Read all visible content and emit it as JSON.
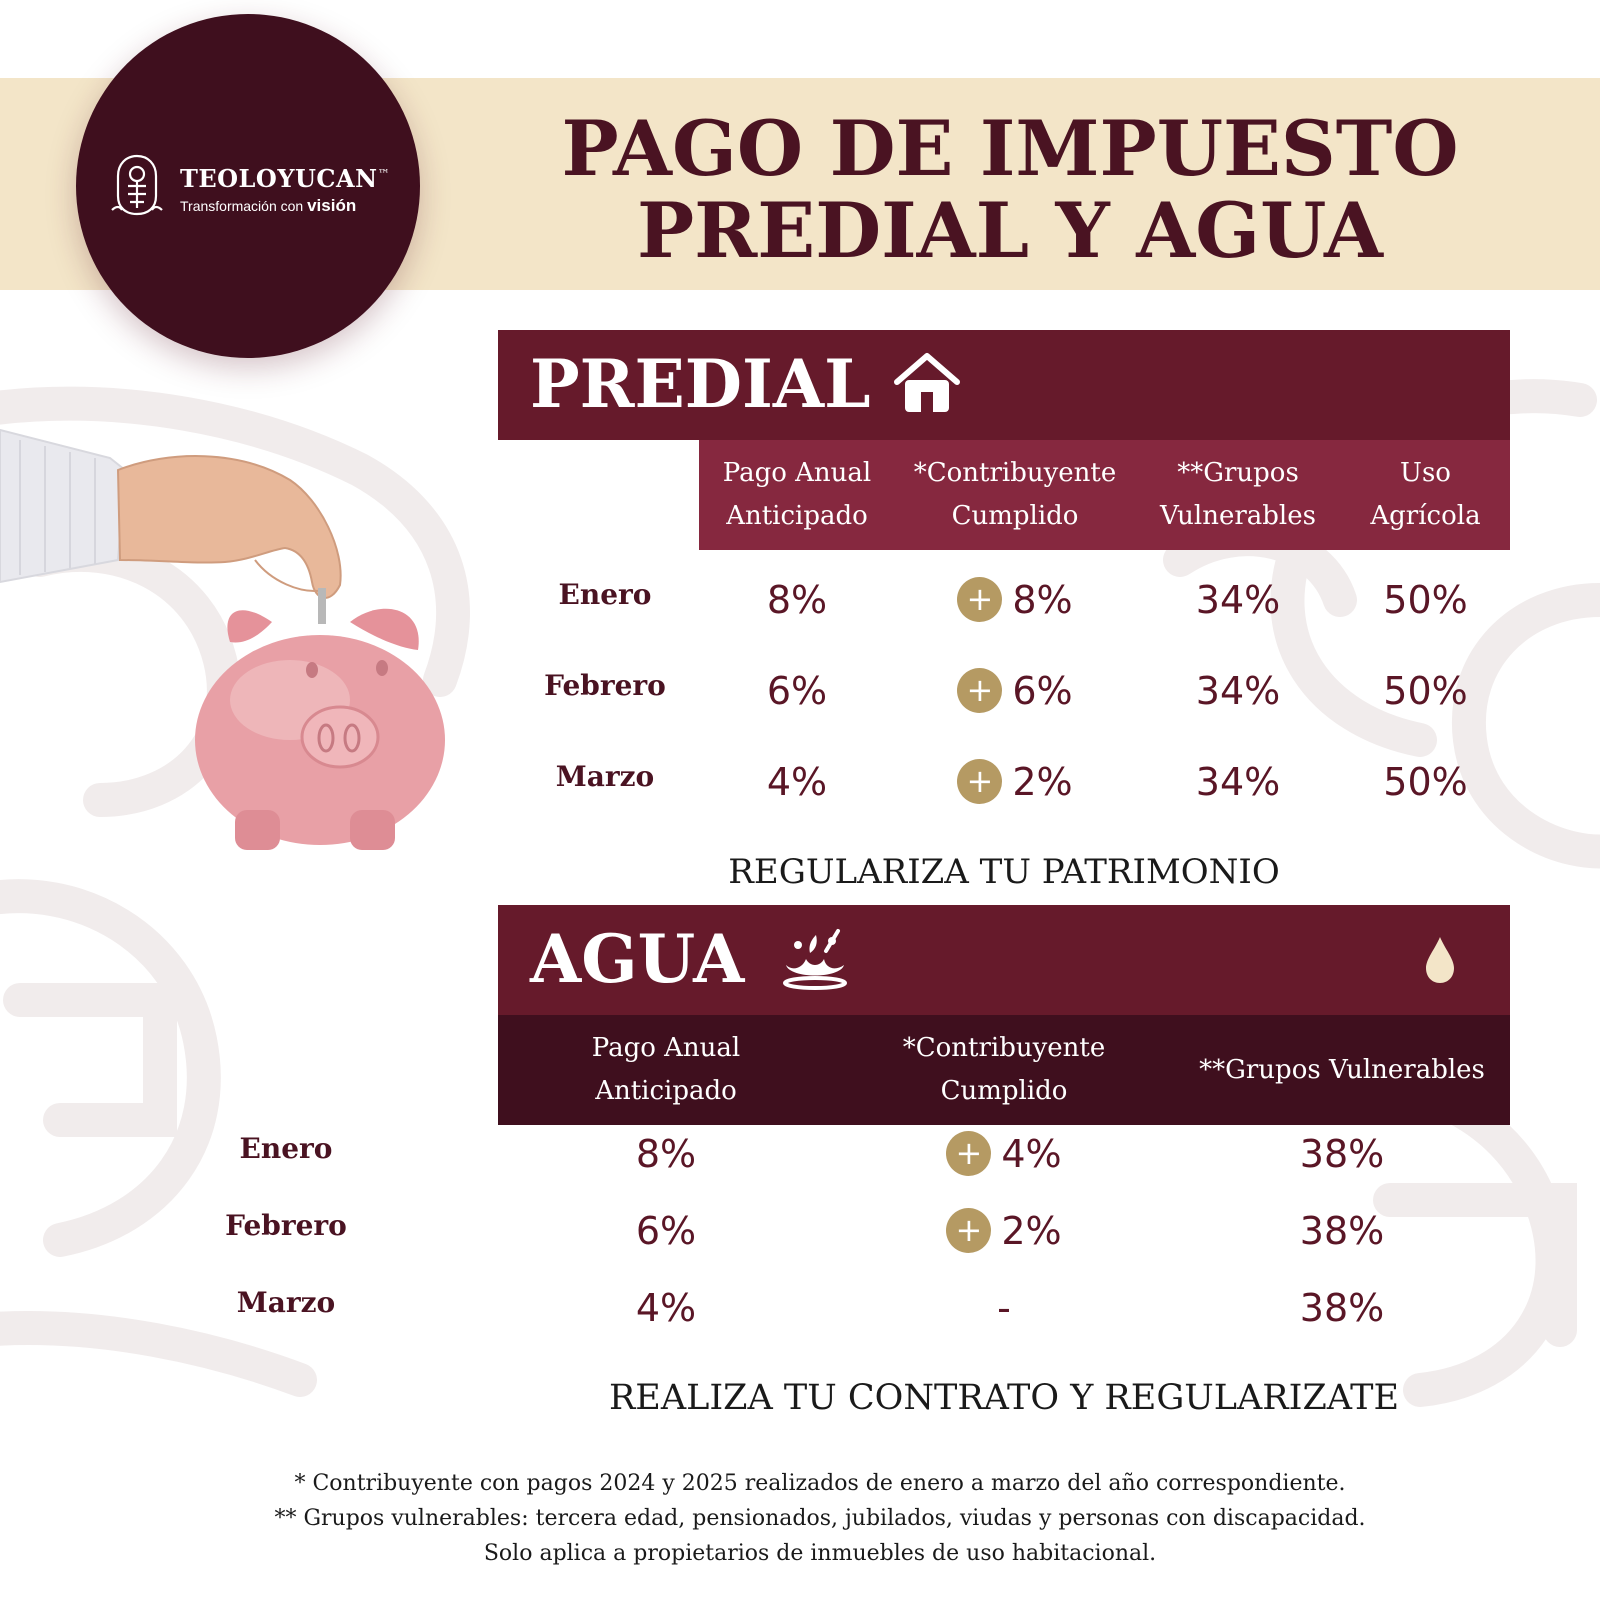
{
  "brand": {
    "name": "TEOLOYUCAN",
    "trademark": "™",
    "tagline_prefix": "Transformación con",
    "tagline_emphasis": "visión",
    "emblem_icon": "municipal-emblem-icon"
  },
  "title": {
    "line1": "PAGO DE IMPUESTO",
    "line2": "PREDIAL Y AGUA"
  },
  "predial": {
    "title": "PREDIAL",
    "icon": "house-icon",
    "headers": [
      "Pago Anual\nAnticipado",
      "*Contribuyente\nCumplido",
      "**Grupos\nVulnerables",
      "Uso\nAgrícola"
    ],
    "rows": [
      {
        "month": "Enero",
        "anual": "8%",
        "cumplido": "8%",
        "vulnerables": "34%",
        "agricola": "50%"
      },
      {
        "month": "Febrero",
        "anual": "6%",
        "cumplido": "6%",
        "vulnerables": "34%",
        "agricola": "50%"
      },
      {
        "month": "Marzo",
        "anual": "4%",
        "cumplido": "2%",
        "vulnerables": "34%",
        "agricola": "50%"
      }
    ],
    "plus_symbol": "+",
    "slogan": "REGULARIZA TU PATRIMONIO"
  },
  "agua": {
    "title": "AGUA",
    "icon": "water-splash-icon",
    "drop_icon": "water-drop-icon",
    "headers": [
      "Pago Anual\nAnticipado",
      "*Contribuyente\nCumplido",
      "**Grupos Vulnerables"
    ],
    "rows": [
      {
        "month": "Enero",
        "anual": "8%",
        "cumplido": "4%",
        "vulnerables": "38%"
      },
      {
        "month": "Febrero",
        "anual": "6%",
        "cumplido": "2%",
        "vulnerables": "38%"
      },
      {
        "month": "Marzo",
        "anual": "4%",
        "cumplido": "-",
        "vulnerables": "38%"
      }
    ],
    "plus_symbol": "+",
    "slogan": "REALIZA TU CONTRATO Y REGULARIZATE"
  },
  "footnotes": [
    "* Contribuyente con pagos 2024 y 2025 realizados de enero a marzo del año correspondiente.",
    "** Grupos vulnerables: tercera edad, pensionados, jubilados, viudas y personas con discapacidad.",
    "Solo aplica a propietarios de inmuebles de uso habitacional."
  ],
  "colors": {
    "maroon_dark": "#3f0f1e",
    "maroon": "#661a2b",
    "maroon_header": "#86283f",
    "cream": "#f3e5c8",
    "gold": "#b59a63"
  }
}
